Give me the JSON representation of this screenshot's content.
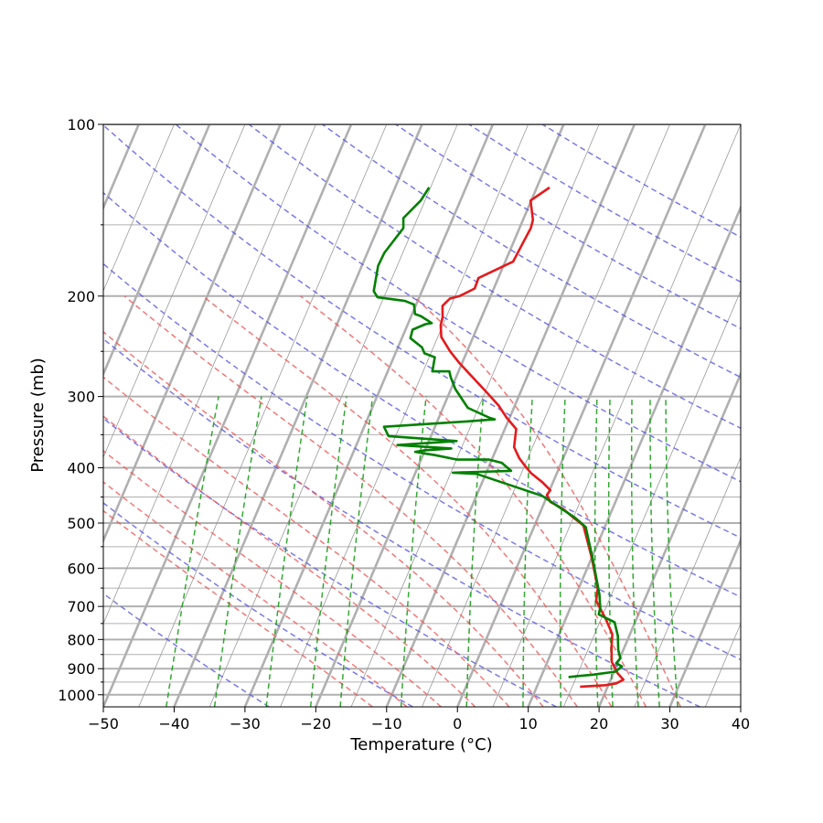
{
  "chart_data": {
    "type": "skew-t log-p",
    "xlabel": "Temperature (°C)",
    "ylabel": "Pressure (mb)",
    "xlim": [
      -50,
      40
    ],
    "ylim": [
      1050,
      100
    ],
    "y_scale": "log",
    "x_ticks": [
      -50,
      -40,
      -30,
      -20,
      -10,
      0,
      10,
      20,
      30,
      40
    ],
    "x_tick_labels": [
      "−50",
      "−40",
      "−30",
      "−20",
      "−10",
      "0",
      "10",
      "20",
      "30",
      "40"
    ],
    "y_ticks": [
      100,
      200,
      300,
      400,
      500,
      600,
      700,
      800,
      900,
      1000
    ],
    "y_tick_labels": [
      "100",
      "200",
      "300",
      "400",
      "500",
      "600",
      "700",
      "800",
      "900",
      "1000"
    ],
    "grid": true,
    "series": [
      {
        "color": "#e41a1c",
        "points": [
          [
            -18.2,
            129
          ],
          [
            -20.1,
            136
          ],
          [
            -18.6,
            147
          ],
          [
            -18.4,
            152
          ],
          [
            -18.6,
            160
          ],
          [
            -18.9,
            174
          ],
          [
            -22.8,
            186
          ],
          [
            -22.7,
            194
          ],
          [
            -24.4,
            200
          ],
          [
            -25.6,
            202
          ],
          [
            -26.2,
            208
          ],
          [
            -25.5,
            218
          ],
          [
            -25.3,
            225
          ],
          [
            -24.5,
            236
          ],
          [
            -22.4,
            250
          ],
          [
            -20.4,
            262
          ],
          [
            -17.4,
            279
          ],
          [
            -14.6,
            296
          ],
          [
            -12.3,
            311
          ],
          [
            -10.4,
            327
          ],
          [
            -8.4,
            342
          ],
          [
            -8.0,
            355
          ],
          [
            -7.6,
            368
          ],
          [
            -6.2,
            385
          ],
          [
            -4.5,
            401
          ],
          [
            -3.6,
            409
          ],
          [
            -1.5,
            424
          ],
          [
            0.1,
            438
          ],
          [
            -0.1,
            446
          ],
          [
            0.8,
            459
          ],
          [
            3.0,
            472
          ],
          [
            5.0,
            489
          ],
          [
            6.9,
            505
          ],
          [
            10.0,
            575
          ],
          [
            12.7,
            651
          ],
          [
            13.2,
            684
          ],
          [
            15.6,
            735
          ],
          [
            17.5,
            783
          ],
          [
            18.2,
            827
          ],
          [
            19.1,
            876
          ],
          [
            20.6,
            917
          ],
          [
            21.8,
            941
          ],
          [
            21.0,
            955
          ],
          [
            19.6,
            962
          ],
          [
            16.1,
            968
          ]
        ]
      },
      {
        "color": "#008000",
        "points": [
          [
            -35.2,
            129
          ],
          [
            -35.6,
            136
          ],
          [
            -37.0,
            146
          ],
          [
            -36.4,
            152
          ],
          [
            -37.6,
            168
          ],
          [
            -37.7,
            177
          ],
          [
            -36.8,
            196
          ],
          [
            -35.9,
            201
          ],
          [
            -31.8,
            204
          ],
          [
            -30.3,
            207
          ],
          [
            -29.6,
            215
          ],
          [
            -28.6,
            217
          ],
          [
            -26.7,
            223
          ],
          [
            -27.5,
            224
          ],
          [
            -29.0,
            229
          ],
          [
            -28.8,
            237
          ],
          [
            -26.6,
            246
          ],
          [
            -25.9,
            252
          ],
          [
            -24.2,
            256
          ],
          [
            -23.7,
            271
          ],
          [
            -21.3,
            271
          ],
          [
            -20.8,
            277
          ],
          [
            -19.4,
            291
          ],
          [
            -16.5,
            314
          ],
          [
            -12.8,
            327
          ],
          [
            -12.0,
            329
          ],
          [
            -16.2,
            332
          ],
          [
            -27.2,
            339
          ],
          [
            -26.0,
            352
          ],
          [
            -16.1,
            359
          ],
          [
            -24.2,
            365
          ],
          [
            -16.4,
            370
          ],
          [
            -20.2,
            373
          ],
          [
            -21.3,
            375
          ],
          [
            -19.6,
            378
          ],
          [
            -18.3,
            380
          ],
          [
            -14.9,
            387
          ],
          [
            -10.4,
            387
          ],
          [
            -8.4,
            392
          ],
          [
            -6.6,
            405
          ],
          [
            -14.7,
            408
          ],
          [
            -11.3,
            410
          ],
          [
            -0.7,
            448
          ],
          [
            5.2,
            489
          ],
          [
            7.3,
            508
          ],
          [
            10.3,
            580
          ],
          [
            13.3,
            667
          ],
          [
            14.2,
            703
          ],
          [
            14.4,
            723
          ],
          [
            17.1,
            746
          ],
          [
            18.4,
            789
          ],
          [
            19.3,
            835
          ],
          [
            20.1,
            863
          ],
          [
            19.8,
            880
          ],
          [
            20.8,
            892
          ],
          [
            20.2,
            911
          ],
          [
            17.2,
            922
          ],
          [
            15.3,
            927
          ],
          [
            13.9,
            931
          ]
        ]
      }
    ]
  }
}
